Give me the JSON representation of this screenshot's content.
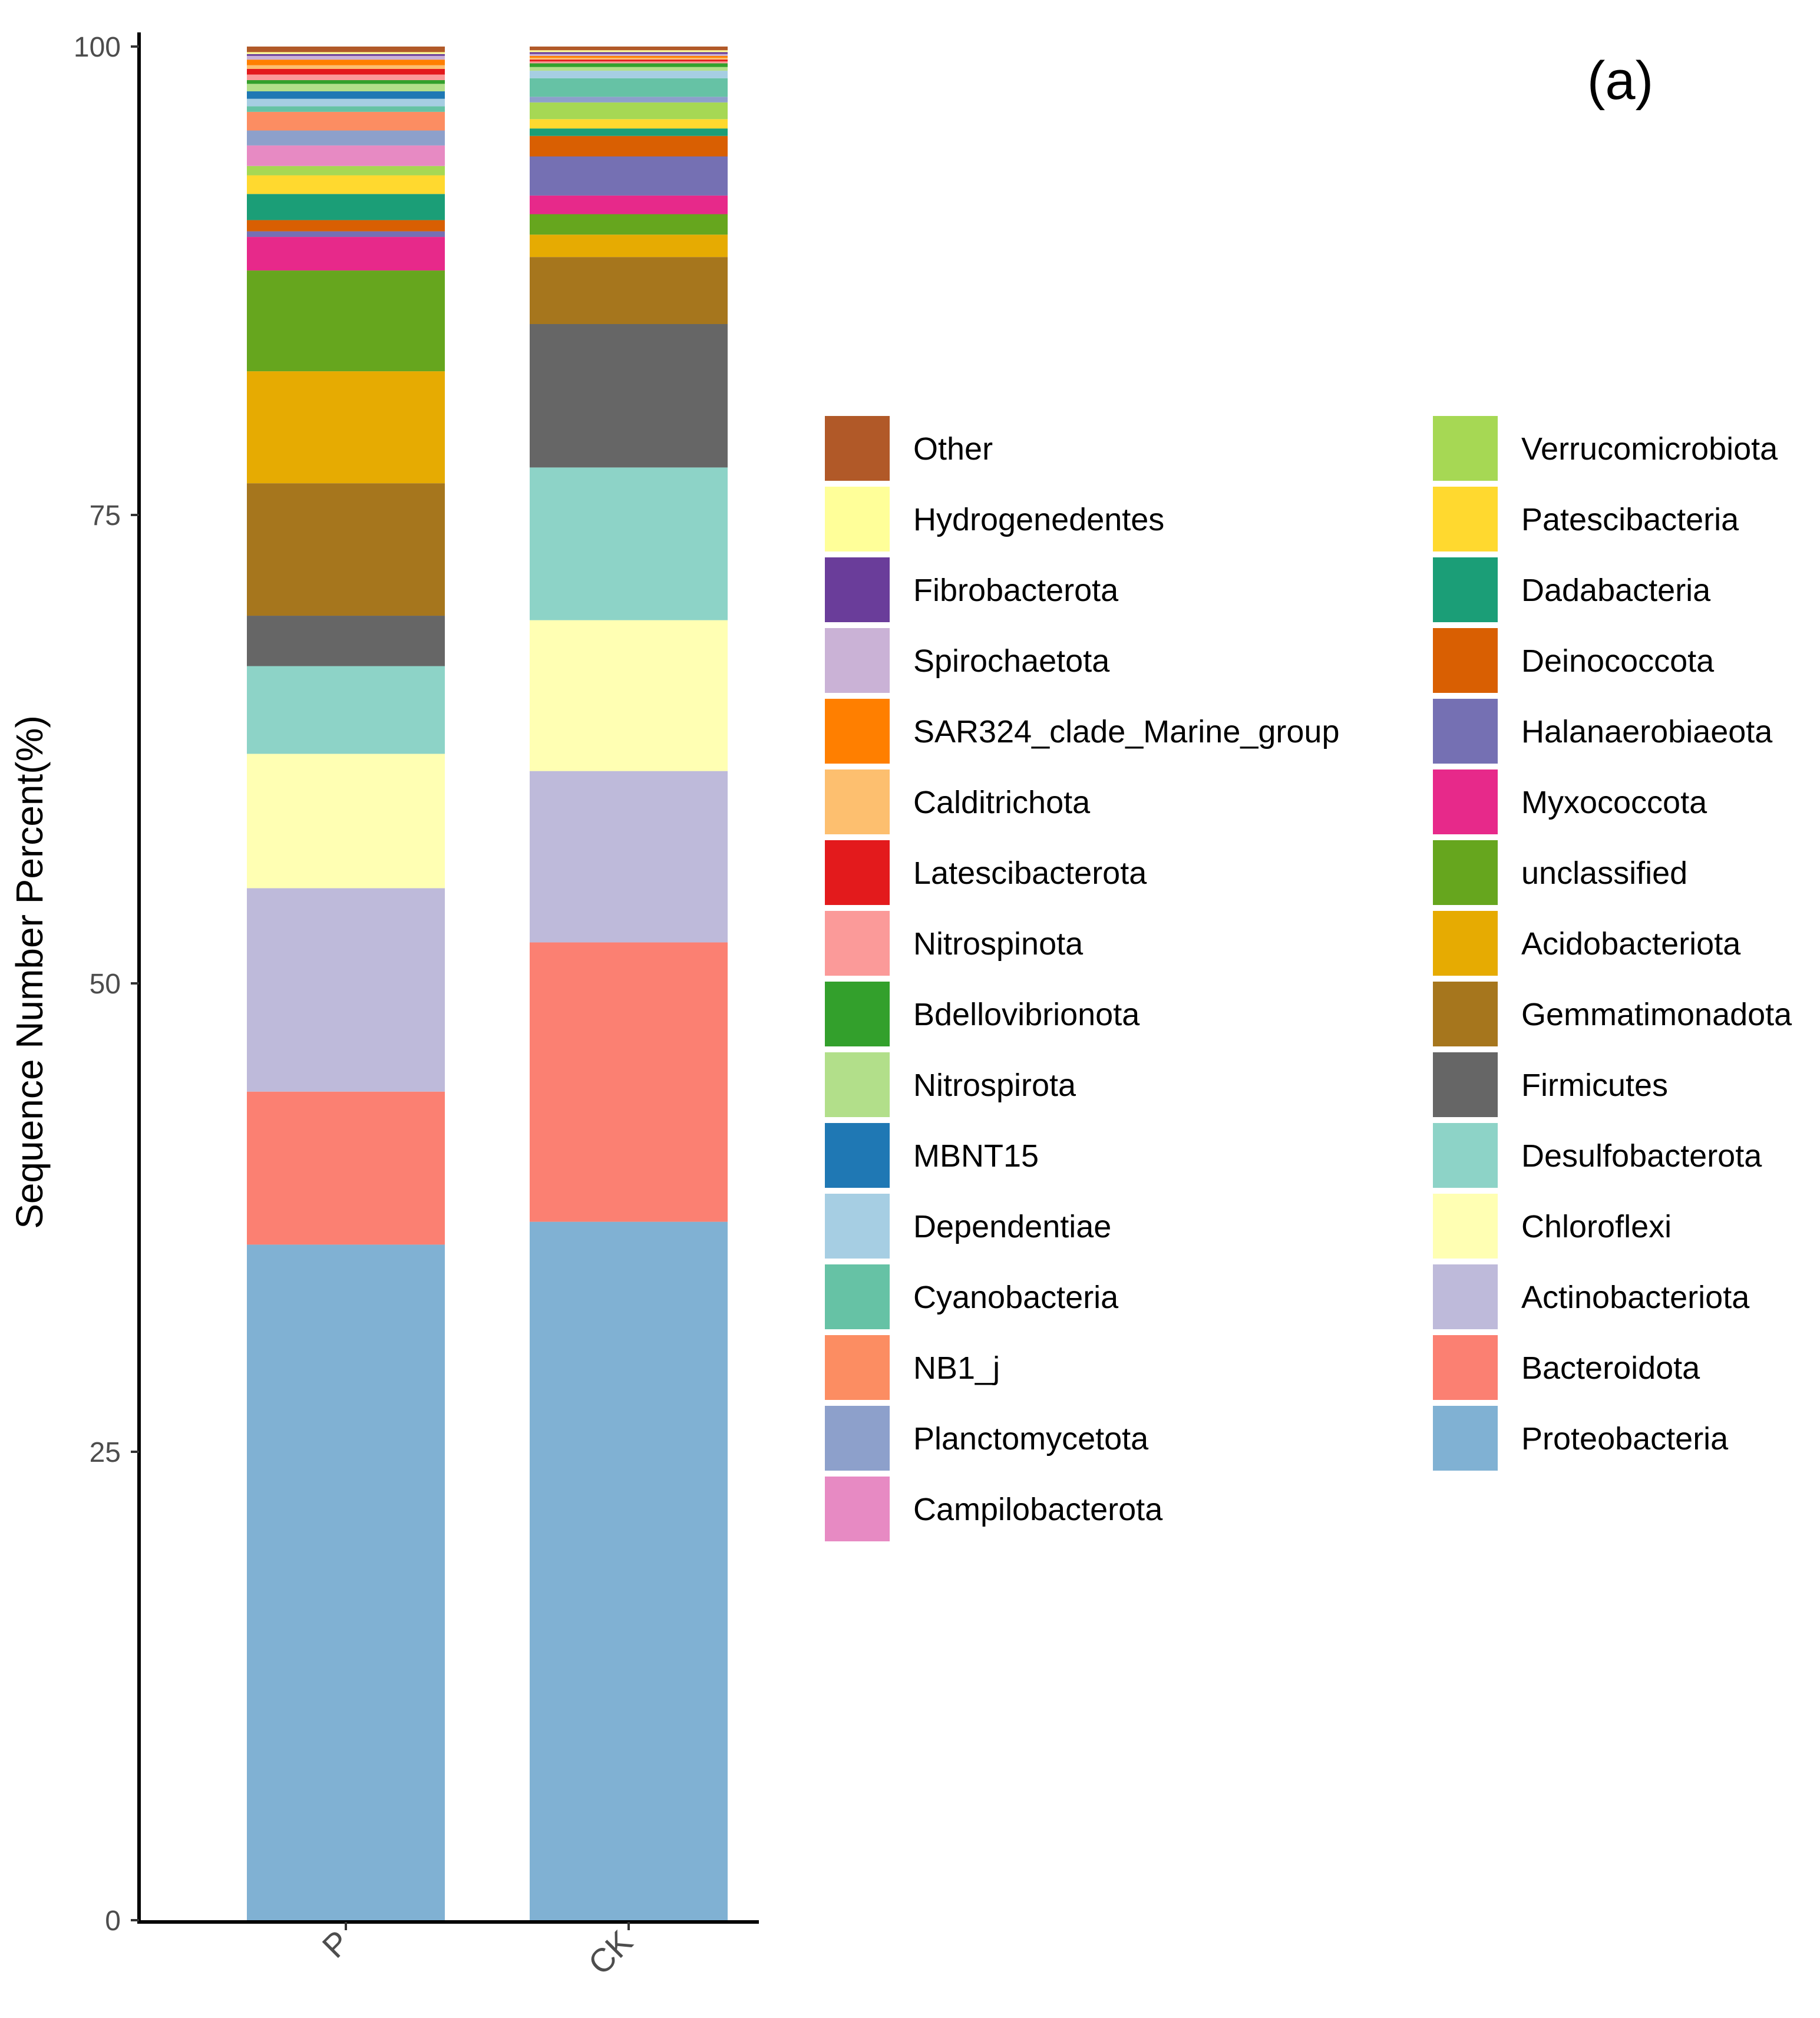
{
  "chart_data": {
    "type": "bar",
    "stacked": true,
    "panel_label": "(a)",
    "title": "",
    "xlabel": "",
    "ylabel": "Sequence Number Percent(%)",
    "ylim": [
      0,
      100
    ],
    "yticks": [
      "0",
      "25",
      "50",
      "75",
      "100"
    ],
    "categories": [
      "P",
      "CK"
    ],
    "series": [
      {
        "name": "Proteobacteria",
        "color": "#80B1D3",
        "values": [
          36.2,
          37.5
        ]
      },
      {
        "name": "Bacteroidota",
        "color": "#FB8072",
        "values": [
          8.2,
          15.0
        ]
      },
      {
        "name": "Actinobacteriota",
        "color": "#BEBADA",
        "values": [
          10.9,
          9.2
        ]
      },
      {
        "name": "Chloroflexi",
        "color": "#FFFFB3",
        "values": [
          7.2,
          8.1
        ]
      },
      {
        "name": "Desulfobacterota",
        "color": "#8DD3C7",
        "values": [
          4.7,
          8.2
        ]
      },
      {
        "name": "Firmicutes",
        "color": "#666666",
        "values": [
          2.7,
          7.7
        ]
      },
      {
        "name": "Gemmatimonadota",
        "color": "#A6761D",
        "values": [
          7.1,
          3.6
        ]
      },
      {
        "name": "Acidobacteriota",
        "color": "#E6AB02",
        "values": [
          6.0,
          1.2
        ]
      },
      {
        "name": "unclassified",
        "color": "#66A61E",
        "values": [
          5.4,
          1.1
        ]
      },
      {
        "name": "Myxococcota",
        "color": "#E7298A",
        "values": [
          1.8,
          1.0
        ]
      },
      {
        "name": "Halanaerobiaeota",
        "color": "#7570B3",
        "values": [
          0.3,
          2.1
        ]
      },
      {
        "name": "Deinococcota",
        "color": "#D95F02",
        "values": [
          0.6,
          1.1
        ]
      },
      {
        "name": "Dadabacteria",
        "color": "#1B9E77",
        "values": [
          1.4,
          0.4
        ]
      },
      {
        "name": "Patescibacteria",
        "color": "#FFD92F",
        "values": [
          1.0,
          0.5
        ]
      },
      {
        "name": "Verrucomicrobiota",
        "color": "#A6D854",
        "values": [
          0.5,
          0.9
        ]
      },
      {
        "name": "Campilobacterota",
        "color": "#E78AC3",
        "values": [
          1.1,
          0.0
        ]
      },
      {
        "name": "Planctomycetota",
        "color": "#8DA0CB",
        "values": [
          0.8,
          0.3
        ]
      },
      {
        "name": "NB1_j",
        "color": "#FC8D62",
        "values": [
          1.0,
          0.0
        ]
      },
      {
        "name": "Cyanobacteria",
        "color": "#66C2A5",
        "values": [
          0.3,
          1.0
        ]
      },
      {
        "name": "Dependentiae",
        "color": "#A6CEE3",
        "values": [
          0.4,
          0.4
        ]
      },
      {
        "name": "MBNT15",
        "color": "#1F78B4",
        "values": [
          0.4,
          0.0
        ]
      },
      {
        "name": "Nitrospirota",
        "color": "#B2DF8A",
        "values": [
          0.4,
          0.2
        ]
      },
      {
        "name": "Bdellovibrionota",
        "color": "#33A02C",
        "values": [
          0.2,
          0.2
        ]
      },
      {
        "name": "Nitrospinota",
        "color": "#FB9A99",
        "values": [
          0.3,
          0.1
        ]
      },
      {
        "name": "Latescibacterota",
        "color": "#E31A1C",
        "values": [
          0.3,
          0.1
        ]
      },
      {
        "name": "Calditrichota",
        "color": "#FDBF6F",
        "values": [
          0.2,
          0.1
        ]
      },
      {
        "name": "SAR324_clade_Marine_group",
        "color": "#FF7F00",
        "values": [
          0.3,
          0.1
        ]
      },
      {
        "name": "Spirochaetota",
        "color": "#CAB2D6",
        "values": [
          0.2,
          0.1
        ]
      },
      {
        "name": "Fibrobacterota",
        "color": "#6A3D9A",
        "values": [
          0.1,
          0.1
        ]
      },
      {
        "name": "Hydrogenedentes",
        "color": "#FFFF99",
        "values": [
          0.1,
          0.1
        ]
      },
      {
        "name": "Other",
        "color": "#B15928",
        "values": [
          0.3,
          0.2
        ]
      }
    ],
    "legend": {
      "placement": "right",
      "columns": [
        [
          "Other",
          "Hydrogenedentes",
          "Fibrobacterota",
          "Spirochaetota",
          "SAR324_clade_Marine_group",
          "Calditrichota",
          "Latescibacterota",
          "Nitrospinota",
          "Bdellovibrionota",
          "Nitrospirota",
          "MBNT15",
          "Dependentiae",
          "Cyanobacteria",
          "NB1_j",
          "Planctomycetota",
          "Campilobacterota"
        ],
        [
          "Verrucomicrobiota",
          "Patescibacteria",
          "Dadabacteria",
          "Deinococcota",
          "Halanaerobiaeota",
          "Myxococcota",
          "unclassified",
          "Acidobacteriota",
          "Gemmatimonadota",
          "Firmicutes",
          "Desulfobacterota",
          "Chloroflexi",
          "Actinobacteriota",
          "Bacteroidota",
          "Proteobacteria"
        ]
      ]
    },
    "grid": false
  }
}
